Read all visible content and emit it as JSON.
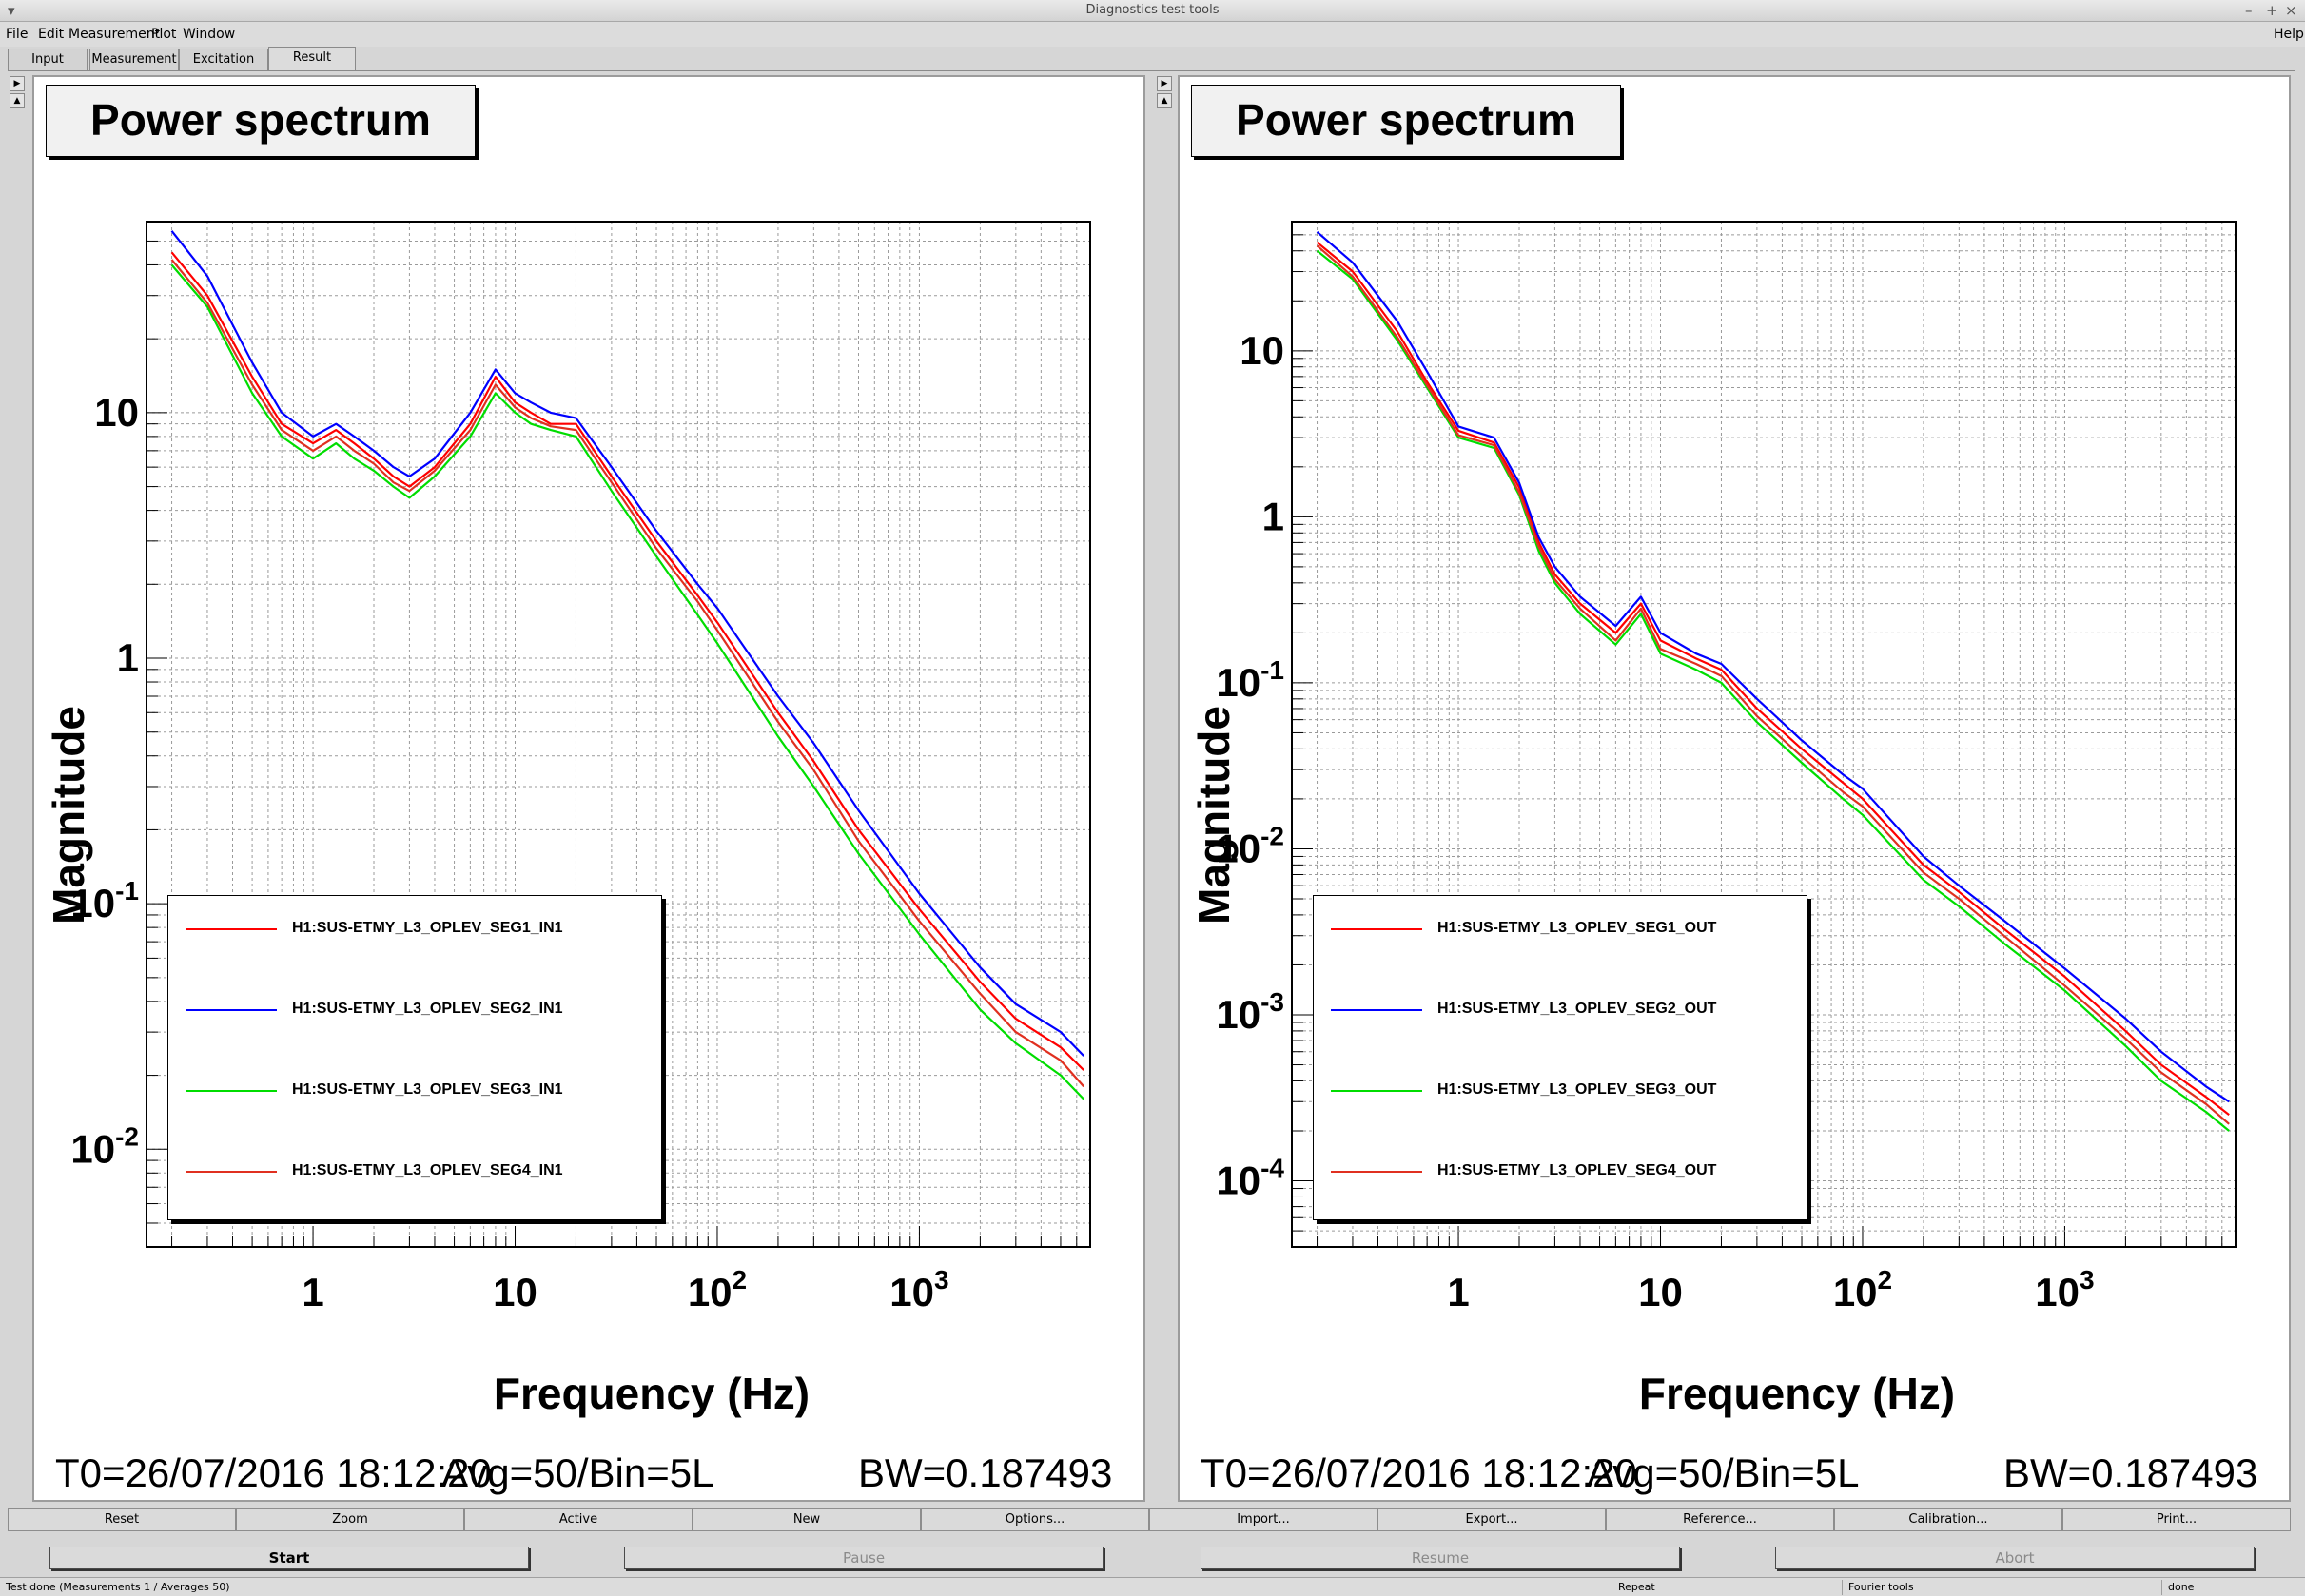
{
  "window": {
    "title": "Diagnostics test tools",
    "help": "Help"
  },
  "menu": [
    "File",
    "Edit",
    "Measurement",
    "Plot",
    "Window"
  ],
  "tabs": [
    "Input",
    "Measurement",
    "Excitation",
    "Result"
  ],
  "active_tab": "Result",
  "panels": [
    {
      "title": "Power spectrum",
      "info_t0": "T0=26/07/2016 18:12:20",
      "info_avg": "Avg=50/Bin=5L",
      "info_bw": "BW=0.187493",
      "legend": [
        "H1:SUS-ETMY_L3_OPLEV_SEG1_IN1",
        "H1:SUS-ETMY_L3_OPLEV_SEG2_IN1",
        "H1:SUS-ETMY_L3_OPLEV_SEG3_IN1",
        "H1:SUS-ETMY_L3_OPLEV_SEG4_IN1"
      ]
    },
    {
      "title": "Power spectrum",
      "info_t0": "T0=26/07/2016 18:12:20",
      "info_avg": "Avg=50/Bin=5L",
      "info_bw": "BW=0.187493",
      "legend": [
        "H1:SUS-ETMY_L3_OPLEV_SEG1_OUT",
        "H1:SUS-ETMY_L3_OPLEV_SEG2_OUT",
        "H1:SUS-ETMY_L3_OPLEV_SEG3_OUT",
        "H1:SUS-ETMY_L3_OPLEV_SEG4_OUT"
      ]
    }
  ],
  "chart_data": [
    {
      "type": "line",
      "title": "Power spectrum",
      "xlabel": "Frequency (Hz)",
      "ylabel": "Magnitude",
      "xscale": "log",
      "yscale": "log",
      "grid": true,
      "legend_position": "bottom-left",
      "xlim": [
        0.15,
        7000
      ],
      "ylim": [
        0.004,
        60
      ],
      "x_ticks": [
        {
          "v": 1,
          "label": "1"
        },
        {
          "v": 10,
          "label": "10"
        },
        {
          "v": 100,
          "label": "10",
          "sup": "2"
        },
        {
          "v": 1000,
          "label": "10",
          "sup": "3"
        }
      ],
      "y_ticks": [
        {
          "v": 10,
          "label": "10"
        },
        {
          "v": 1,
          "label": "1"
        },
        {
          "v": 0.1,
          "label": "10",
          "sup": "-1"
        },
        {
          "v": 0.01,
          "label": "10",
          "sup": "-2"
        }
      ],
      "x": [
        0.2,
        0.3,
        0.5,
        0.7,
        1,
        1.3,
        1.6,
        2,
        2.5,
        3,
        4,
        6,
        8,
        10,
        12,
        15,
        20,
        30,
        50,
        80,
        100,
        200,
        300,
        500,
        1000,
        2000,
        3000,
        5000,
        6500
      ],
      "series": [
        {
          "name": "H1:SUS-ETMY_L3_OPLEV_SEG1_IN1",
          "color": "#ff0000",
          "values": [
            45,
            30,
            14,
            9,
            7.5,
            8.5,
            7.5,
            6.5,
            5.5,
            5,
            6,
            9,
            14,
            11,
            10,
            9,
            9,
            5.5,
            3,
            1.8,
            1.4,
            0.6,
            0.38,
            0.2,
            0.095,
            0.048,
            0.034,
            0.026,
            0.021
          ]
        },
        {
          "name": "H1:SUS-ETMY_L3_OPLEV_SEG2_IN1",
          "color": "#0000ff",
          "values": [
            55,
            36,
            16,
            10,
            8,
            9,
            8,
            7,
            6,
            5.5,
            6.5,
            10,
            15,
            12,
            11,
            10,
            9.5,
            6,
            3.3,
            2,
            1.6,
            0.7,
            0.45,
            0.24,
            0.11,
            0.055,
            0.039,
            0.03,
            0.024
          ]
        },
        {
          "name": "H1:SUS-ETMY_L3_OPLEV_SEG3_IN1",
          "color": "#00dd00",
          "values": [
            40,
            27,
            12,
            8,
            6.5,
            7.5,
            6.5,
            5.8,
            5,
            4.5,
            5.5,
            8,
            12,
            10,
            9,
            8.5,
            8,
            4.8,
            2.6,
            1.5,
            1.15,
            0.48,
            0.3,
            0.16,
            0.075,
            0.037,
            0.027,
            0.02,
            0.016
          ]
        },
        {
          "name": "H1:SUS-ETMY_L3_OPLEV_SEG4_IN1",
          "color": "#e03020",
          "values": [
            42,
            28,
            13,
            8.5,
            7,
            8,
            7,
            6.2,
            5.2,
            4.8,
            5.8,
            8.5,
            13,
            10.5,
            9.5,
            8.8,
            8.5,
            5.2,
            2.8,
            1.7,
            1.3,
            0.55,
            0.35,
            0.18,
            0.085,
            0.043,
            0.03,
            0.023,
            0.018
          ]
        }
      ]
    },
    {
      "type": "line",
      "title": "Power spectrum",
      "xlabel": "Frequency (Hz)",
      "ylabel": "Magnitude",
      "xscale": "log",
      "yscale": "log",
      "grid": true,
      "legend_position": "bottom-left",
      "xlim": [
        0.15,
        7000
      ],
      "ylim": [
        4e-05,
        60
      ],
      "x_ticks": [
        {
          "v": 1,
          "label": "1"
        },
        {
          "v": 10,
          "label": "10"
        },
        {
          "v": 100,
          "label": "10",
          "sup": "2"
        },
        {
          "v": 1000,
          "label": "10",
          "sup": "3"
        }
      ],
      "y_ticks": [
        {
          "v": 10,
          "label": "10"
        },
        {
          "v": 1,
          "label": "1"
        },
        {
          "v": 0.1,
          "label": "10",
          "sup": "-1"
        },
        {
          "v": 0.01,
          "label": "10",
          "sup": "-2"
        },
        {
          "v": 0.001,
          "label": "10",
          "sup": "-3"
        },
        {
          "v": 0.0001,
          "label": "10",
          "sup": "-4"
        }
      ],
      "x": [
        0.2,
        0.3,
        0.5,
        0.7,
        1,
        1.5,
        2,
        2.5,
        3,
        4,
        6,
        8,
        10,
        15,
        20,
        30,
        50,
        80,
        100,
        200,
        300,
        500,
        1000,
        2000,
        3000,
        5000,
        6500
      ],
      "series": [
        {
          "name": "H1:SUS-ETMY_L3_OPLEV_SEG1_OUT",
          "color": "#ff0000",
          "values": [
            45,
            30,
            13,
            6.5,
            3.3,
            2.8,
            1.5,
            0.7,
            0.45,
            0.3,
            0.2,
            0.3,
            0.18,
            0.14,
            0.12,
            0.07,
            0.04,
            0.025,
            0.02,
            0.008,
            0.0055,
            0.0033,
            0.0017,
            0.0008,
            0.0005,
            0.00032,
            0.00025
          ]
        },
        {
          "name": "H1:SUS-ETMY_L3_OPLEV_SEG2_OUT",
          "color": "#0000ff",
          "values": [
            52,
            34,
            15,
            7.5,
            3.5,
            3,
            1.6,
            0.75,
            0.5,
            0.33,
            0.22,
            0.33,
            0.2,
            0.15,
            0.13,
            0.08,
            0.045,
            0.028,
            0.023,
            0.009,
            0.006,
            0.0037,
            0.0019,
            0.00095,
            0.0006,
            0.00037,
            0.0003
          ]
        },
        {
          "name": "H1:SUS-ETMY_L3_OPLEV_SEG3_OUT",
          "color": "#00dd00",
          "values": [
            40,
            27,
            11.5,
            6,
            3,
            2.6,
            1.35,
            0.62,
            0.4,
            0.26,
            0.17,
            0.26,
            0.15,
            0.12,
            0.1,
            0.058,
            0.033,
            0.02,
            0.016,
            0.0065,
            0.0045,
            0.0027,
            0.0014,
            0.00065,
            0.0004,
            0.00026,
            0.0002
          ]
        },
        {
          "name": "H1:SUS-ETMY_L3_OPLEV_SEG4_OUT",
          "color": "#e03020",
          "values": [
            43,
            28,
            12,
            6.2,
            3.1,
            2.7,
            1.4,
            0.66,
            0.42,
            0.28,
            0.18,
            0.28,
            0.16,
            0.13,
            0.11,
            0.063,
            0.036,
            0.022,
            0.018,
            0.0072,
            0.005,
            0.003,
            0.0015,
            0.00072,
            0.00045,
            0.00029,
            0.00022
          ]
        }
      ]
    }
  ],
  "tool_buttons": [
    "Reset",
    "Zoom",
    "Active",
    "New",
    "Options...",
    "Import...",
    "Export...",
    "Reference...",
    "Calibration...",
    "Print..."
  ],
  "control_buttons": [
    {
      "label": "Start",
      "enabled": true
    },
    {
      "label": "Pause",
      "enabled": false
    },
    {
      "label": "Resume",
      "enabled": false
    },
    {
      "label": "Abort",
      "enabled": false
    }
  ],
  "status": {
    "main": "Test done (Measurements 1 / Averages 50)",
    "repeat": "Repeat",
    "tool": "Fourier tools",
    "state": "done"
  }
}
